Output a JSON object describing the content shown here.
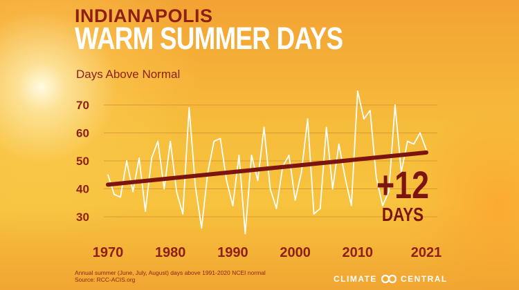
{
  "header": {
    "city": "INDIANAPOLIS",
    "title": "WARM SUMMER DAYS"
  },
  "callout": {
    "value": "+12",
    "unit": "DAYS"
  },
  "footnote": {
    "line1": "Annual summer (June, July, August) days above 1991-2020 NCEI normal",
    "line2": "Source: RCC-ACIS.org"
  },
  "logo": {
    "left_text": "CLIMATE",
    "right_text": "CENTRAL"
  },
  "colors": {
    "series_line": "#ffffff",
    "trend_line": "#7c1510",
    "text_accent": "#8e1f16",
    "gridline": "#c8822c"
  },
  "chart_data": {
    "type": "line",
    "ylabel": "Days Above Normal",
    "xlabel": "",
    "xlim": [
      1970,
      2021
    ],
    "ylim": [
      25,
      75
    ],
    "yticks": [
      30,
      40,
      50,
      60,
      70
    ],
    "xticks": [
      1970,
      1980,
      1990,
      2000,
      2010,
      2021
    ],
    "grid": true,
    "series": [
      {
        "x": [
          1970,
          1971,
          1972,
          1973,
          1974,
          1975,
          1976,
          1977,
          1978,
          1979,
          1980,
          1981,
          1982,
          1983,
          1984,
          1985,
          1986,
          1987,
          1988,
          1989,
          1990,
          1991,
          1992,
          1993,
          1994,
          1995,
          1996,
          1997,
          1998,
          1999,
          2000,
          2001,
          2002,
          2003,
          2004,
          2005,
          2006,
          2007,
          2008,
          2009,
          2010,
          2011,
          2012,
          2013,
          2014,
          2015,
          2016,
          2017,
          2018,
          2019,
          2020,
          2021
        ],
        "values": [
          45,
          38,
          37,
          50,
          39,
          51,
          32,
          51,
          57,
          40,
          57,
          39,
          31,
          69,
          41,
          26,
          46,
          57,
          58,
          43,
          34,
          52,
          24,
          52,
          43,
          62,
          40,
          33,
          48,
          52,
          36,
          46,
          65,
          31,
          33,
          62,
          40,
          56,
          44,
          34,
          75,
          65,
          68,
          44,
          34,
          39,
          70,
          46,
          57,
          56,
          60,
          54
        ]
      },
      {
        "name": "trend",
        "x": [
          1970,
          2021
        ],
        "values": [
          41.5,
          53
        ]
      }
    ]
  }
}
